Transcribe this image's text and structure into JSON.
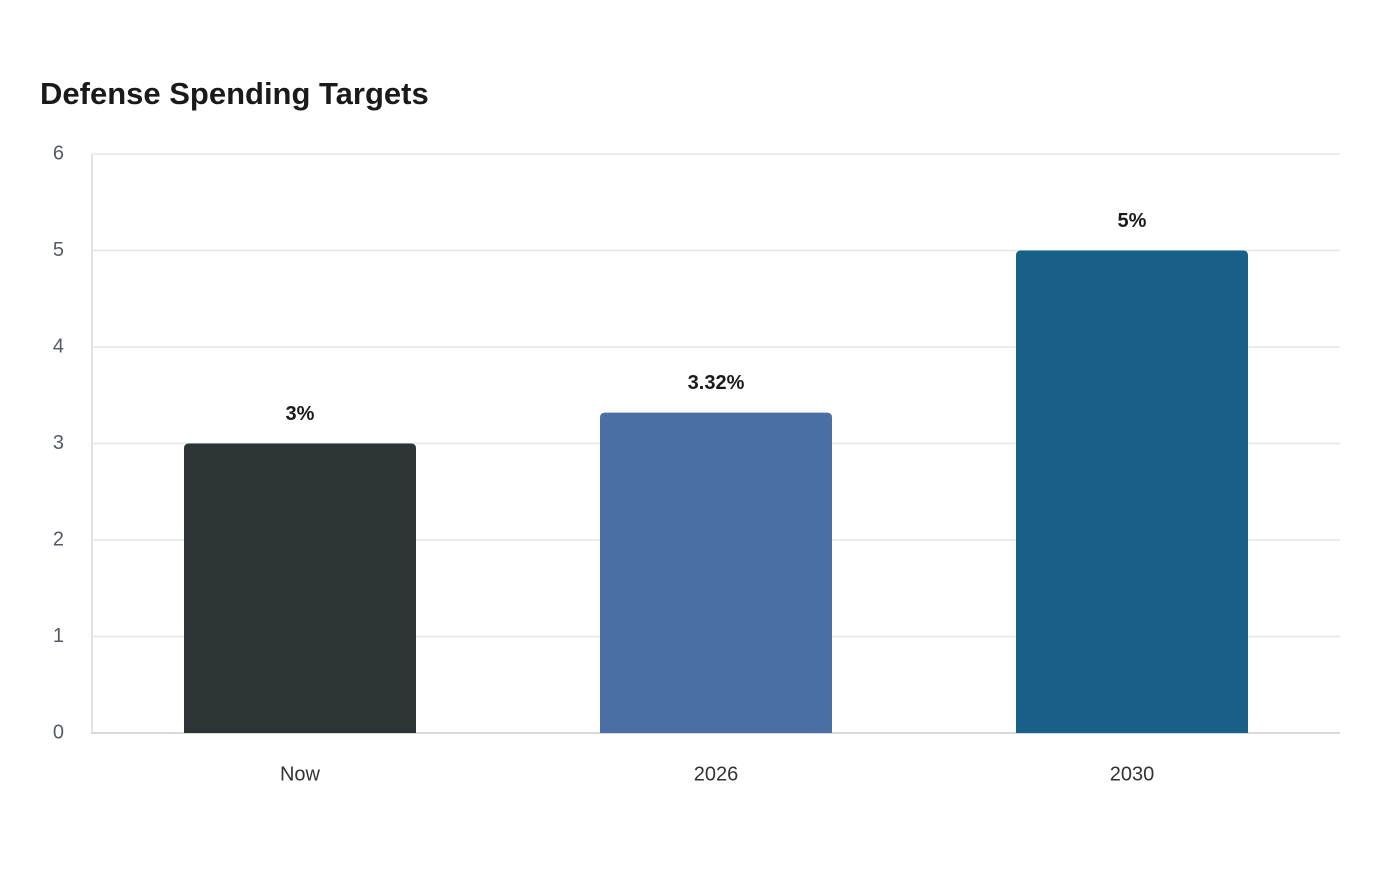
{
  "chart_data": {
    "type": "bar",
    "title": "Defense Spending Targets",
    "categories": [
      "Now",
      "2026",
      "2030"
    ],
    "values": [
      3,
      3.32,
      5
    ],
    "value_labels": [
      "3%",
      "3.32%",
      "5%"
    ],
    "colors": [
      "#2d3436",
      "#4a6fa5",
      "#186088"
    ],
    "ylim": [
      0,
      6
    ],
    "yticks": [
      0,
      1,
      2,
      3,
      4,
      5,
      6
    ],
    "grid": true
  }
}
